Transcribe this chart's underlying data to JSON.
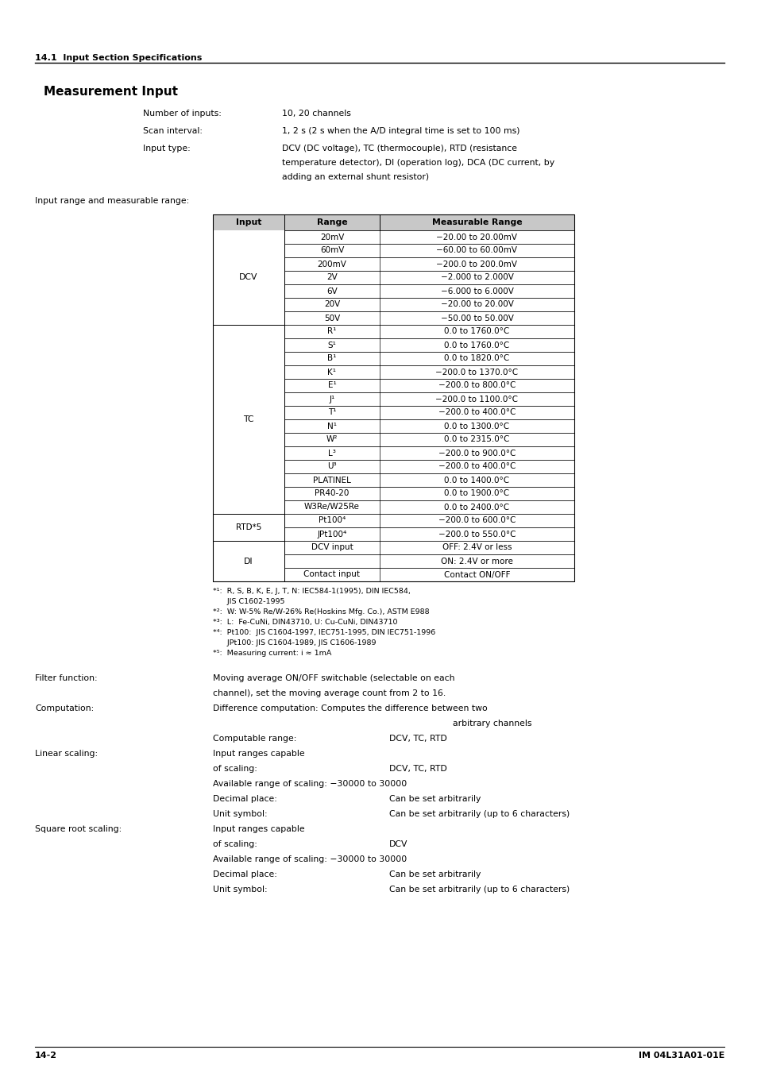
{
  "page_header": "14.1  Input Section Specifications",
  "section_title": "Measurement Input",
  "fields": [
    {
      "label": "Number of inputs:",
      "value": "10, 20 channels"
    },
    {
      "label": "Scan interval:",
      "value": "1, 2 s (2 s when the A/D integral time is set to 100 ms)"
    },
    {
      "label": "Input type:",
      "value_lines": [
        "DCV (DC voltage), TC (thermocouple), RTD (resistance",
        "temperature detector), DI (operation log), DCA (DC current, by",
        "adding an external shunt resistor)"
      ]
    }
  ],
  "table_intro": "Input range and measurable range:",
  "table_headers": [
    "Input",
    "Range",
    "Measurable Range"
  ],
  "table_rows": [
    [
      "20mV",
      "−20.00 to 20.00mV"
    ],
    [
      "60mV",
      "−60.00 to 60.00mV"
    ],
    [
      "200mV",
      "−200.0 to 200.0mV"
    ],
    [
      "2V",
      "−2.000 to 2.000V"
    ],
    [
      "6V",
      "−6.000 to 6.000V"
    ],
    [
      "20V",
      "−20.00 to 20.00V"
    ],
    [
      "50V",
      "−50.00 to 50.00V"
    ],
    [
      "R¹",
      "0.0 to 1760.0°C"
    ],
    [
      "S¹",
      "0.0 to 1760.0°C"
    ],
    [
      "B¹",
      "0.0 to 1820.0°C"
    ],
    [
      "K¹",
      "−200.0 to 1370.0°C"
    ],
    [
      "E¹",
      "−200.0 to 800.0°C"
    ],
    [
      "J¹",
      "−200.0 to 1100.0°C"
    ],
    [
      "T¹",
      "−200.0 to 400.0°C"
    ],
    [
      "N¹",
      "0.0 to 1300.0°C"
    ],
    [
      "W²",
      "0.0 to 2315.0°C"
    ],
    [
      "L³",
      "−200.0 to 900.0°C"
    ],
    [
      "U³",
      "−200.0 to 400.0°C"
    ],
    [
      "PLATINEL",
      "0.0 to 1400.0°C"
    ],
    [
      "PR40-20",
      "0.0 to 1900.0°C"
    ],
    [
      "W3Re/W25Re",
      "0.0 to 2400.0°C"
    ],
    [
      "Pt100⁴",
      "−200.0 to 600.0°C"
    ],
    [
      "JPt100⁴",
      "−200.0 to 550.0°C"
    ],
    [
      "DCV input",
      "OFF: 2.4V or less"
    ],
    [
      "",
      "ON: 2.4V or more"
    ],
    [
      "Contact input",
      "Contact ON/OFF"
    ]
  ],
  "input_groups": [
    {
      "label": "DCV",
      "start": 0,
      "end": 6
    },
    {
      "label": "TC",
      "start": 7,
      "end": 20
    },
    {
      "label": "RTD*5",
      "start": 21,
      "end": 22
    },
    {
      "label": "DI",
      "start": 23,
      "end": 25
    }
  ],
  "di_merged_rows": [
    23,
    24
  ],
  "footnotes": [
    "*¹:  R, S, B, K, E, J, T, N: IEC584-1(1995), DIN IEC584,",
    "      JIS C1602-1995",
    "*²:  W: W-5% Re/W-26% Re(Hoskins Mfg. Co.), ASTM E988",
    "*³:  L:  Fe-CuNi, DIN43710, U: Cu-CuNi, DIN43710",
    "*⁴:  Pt100:  JIS C1604-1997, IEC751-1995, DIN IEC751-1996",
    "      JPt100: JIS C1604-1989, JIS C1606-1989",
    "*⁵:  Measuring current: i ≈ 1mA"
  ],
  "extra_fields": [
    {
      "label": "Filter function:",
      "indent": false,
      "col1": "Moving average ON/OFF switchable (selectable on each",
      "col2": ""
    },
    {
      "label": "",
      "indent": false,
      "col1": "channel), set the moving average count from 2 to 16.",
      "col2": ""
    },
    {
      "label": "Computation:",
      "indent": false,
      "col1": "Difference computation: Computes the difference between two",
      "col2": ""
    },
    {
      "label": "",
      "indent": false,
      "col1": "",
      "col2_center": "arbitrary channels"
    },
    {
      "label": "",
      "indent": true,
      "col1": "Computable range:",
      "col2": "DCV, TC, RTD"
    },
    {
      "label": "Linear scaling:",
      "indent": false,
      "col1": "Input ranges capable",
      "col2": ""
    },
    {
      "label": "",
      "indent": false,
      "col1": "of scaling:",
      "col2": "DCV, TC, RTD"
    },
    {
      "label": "",
      "indent": false,
      "col1": "Available range of scaling: −30000 to 30000",
      "col2": ""
    },
    {
      "label": "",
      "indent": true,
      "col1": "Decimal place:",
      "col2": "Can be set arbitrarily"
    },
    {
      "label": "",
      "indent": true,
      "col1": "Unit symbol:",
      "col2": "Can be set arbitrarily (up to 6 characters)"
    },
    {
      "label": "Square root scaling:",
      "indent": false,
      "col1": "Input ranges capable",
      "col2": ""
    },
    {
      "label": "",
      "indent": false,
      "col1": "of scaling:",
      "col2": "DCV"
    },
    {
      "label": "",
      "indent": false,
      "col1": "Available range of scaling: −30000 to 30000",
      "col2": ""
    },
    {
      "label": "",
      "indent": true,
      "col1": "Decimal place:",
      "col2": "Can be set arbitrarily"
    },
    {
      "label": "",
      "indent": true,
      "col1": "Unit symbol:",
      "col2": "Can be set arbitrarily (up to 6 characters)"
    }
  ],
  "footer_left": "14-2",
  "footer_right": "IM 04L31A01-01E"
}
